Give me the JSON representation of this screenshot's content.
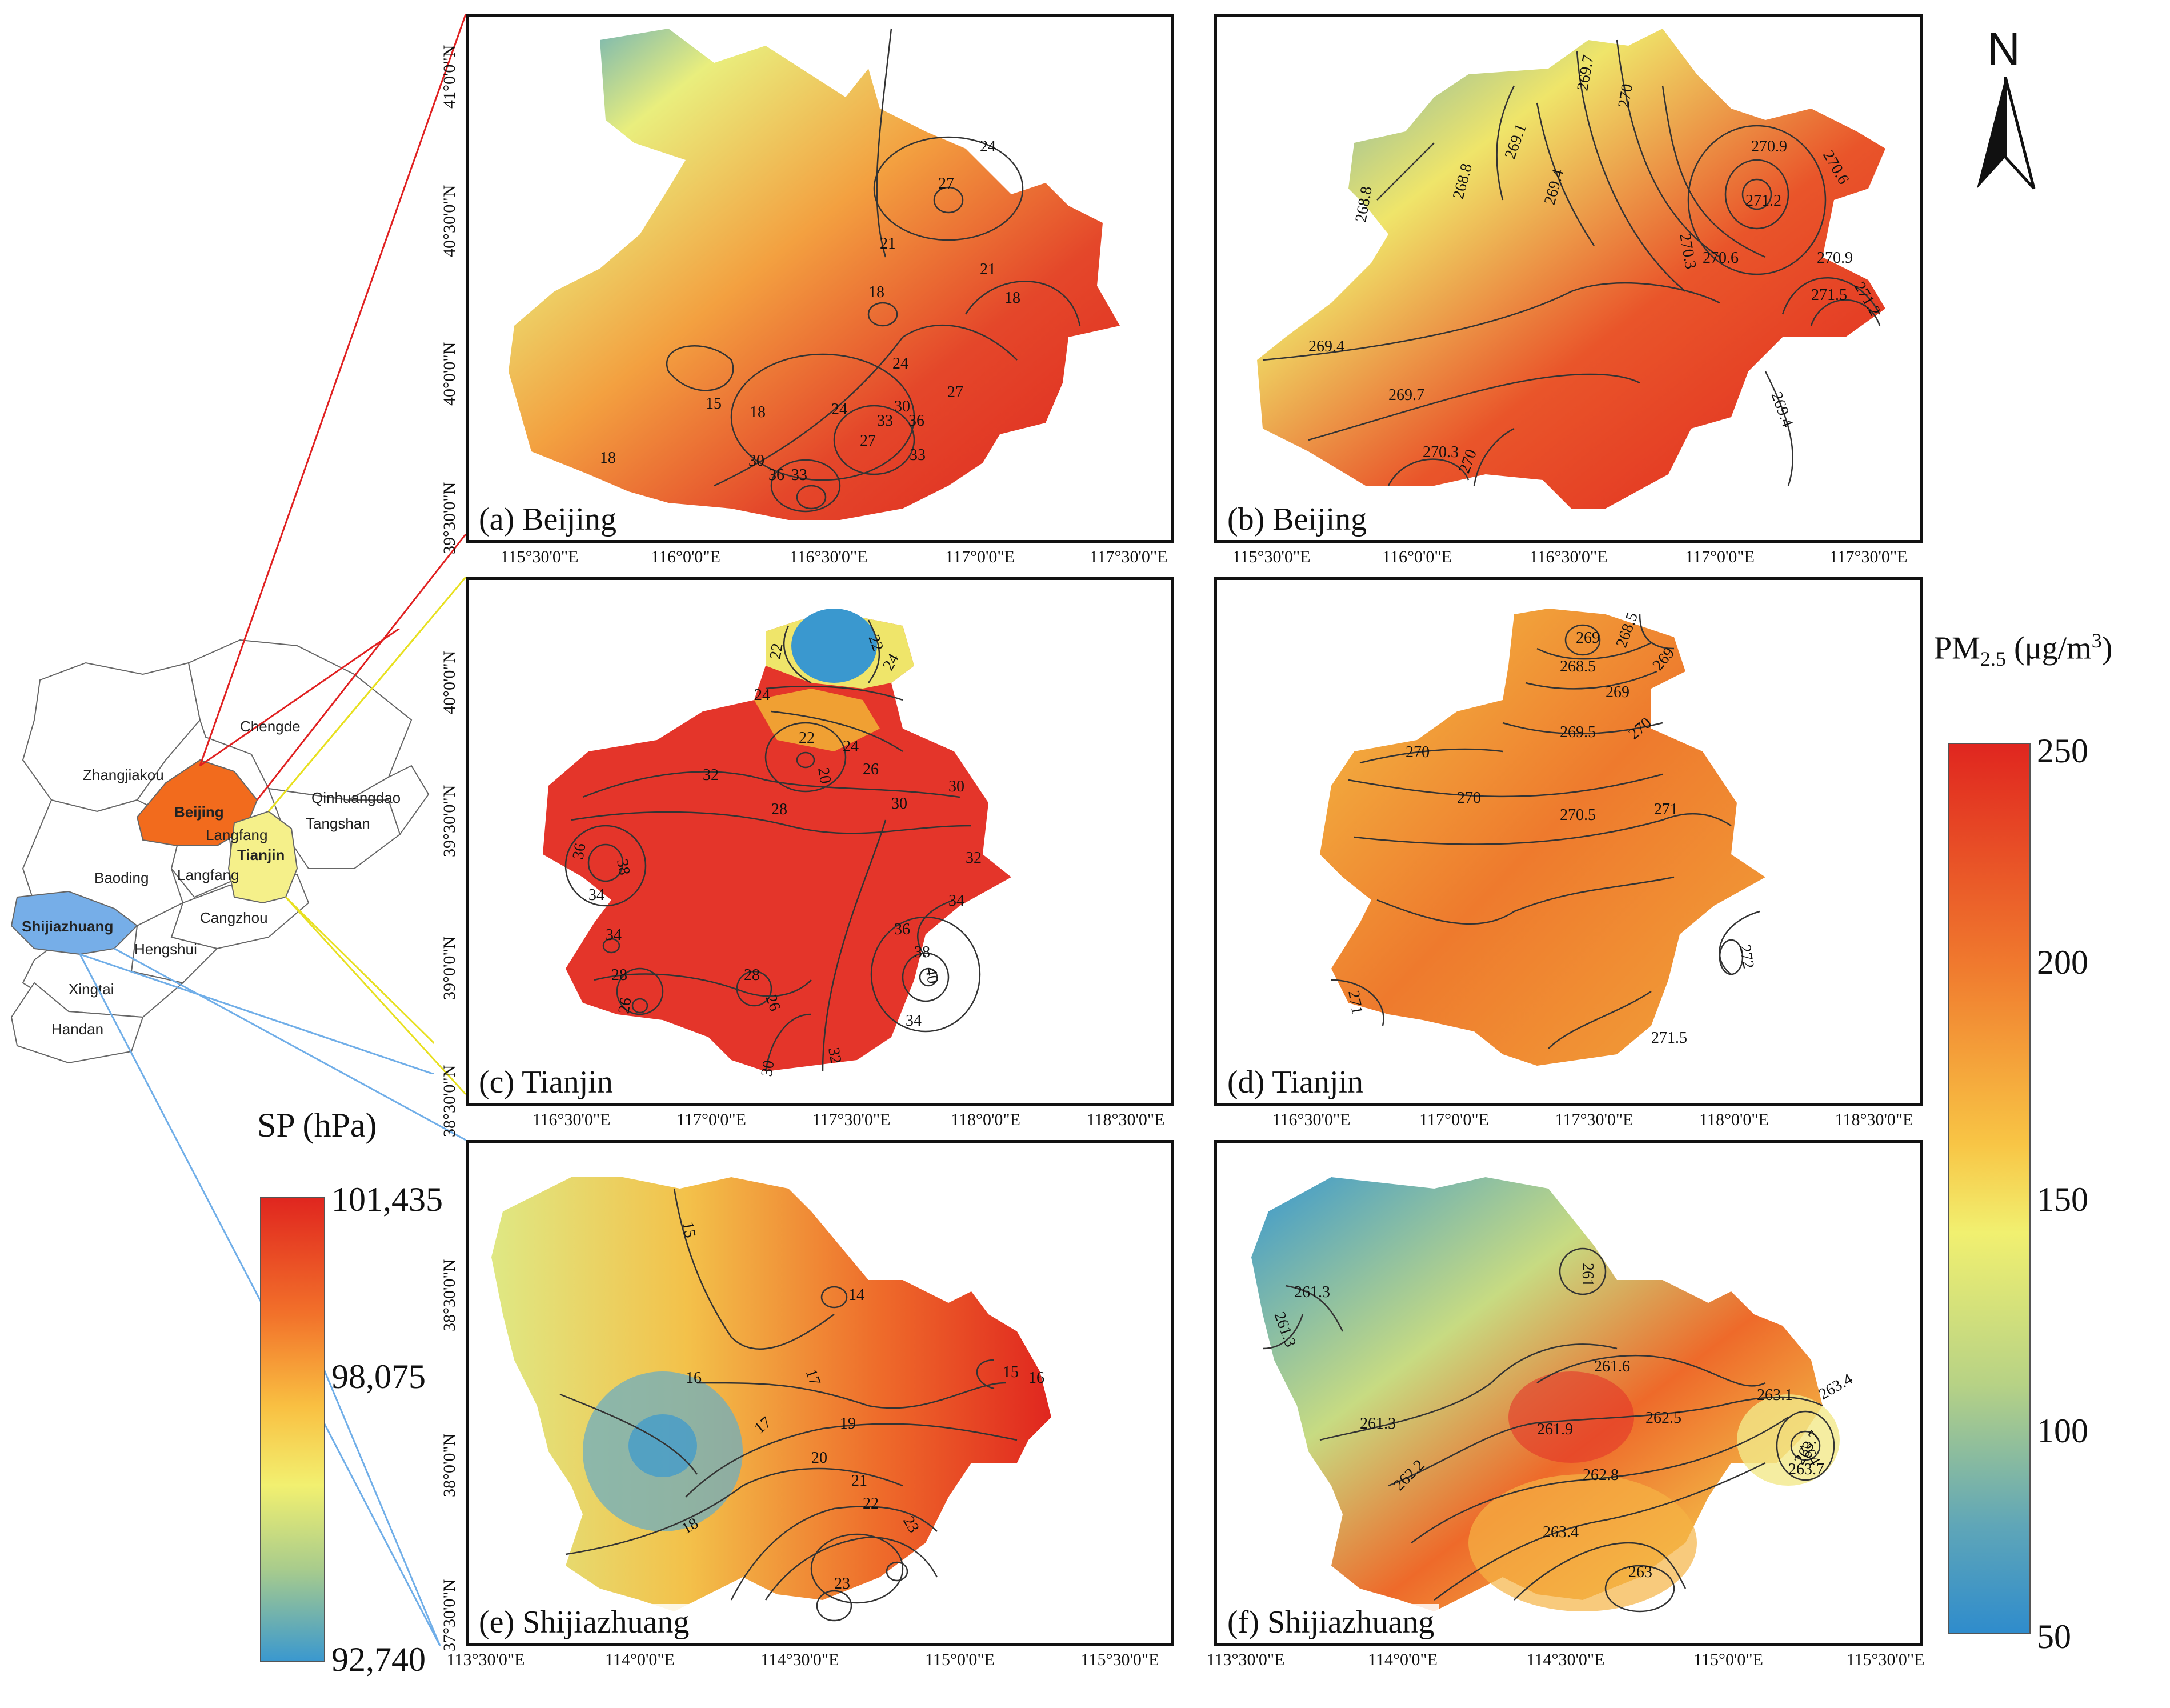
{
  "panels": [
    {
      "id": "a",
      "label": "(a) Beijing",
      "city": "Beijing",
      "variable": "SP",
      "x_ticks": [
        "115°30'0\"E",
        "116°0'0\"E",
        "116°30'0\"E",
        "117°0'0\"E",
        "117°30'0\"E"
      ],
      "y_ticks": [
        "41°0'0\"N",
        "40°30'0\"N",
        "40°0'0\"N",
        "39°30'0\"N"
      ],
      "contour_labels": [
        "27",
        "24",
        "21",
        "21",
        "18",
        "18",
        "15",
        "18",
        "18",
        "24",
        "24",
        "27",
        "30",
        "33",
        "36",
        "33",
        "27",
        "30",
        "36",
        "33"
      ]
    },
    {
      "id": "b",
      "label": "(b) Beijing",
      "city": "Beijing",
      "variable": "PM2.5",
      "x_ticks": [
        "115°30'0\"E",
        "116°0'0\"E",
        "116°30'0\"E",
        "117°0'0\"E",
        "117°30'0\"E"
      ],
      "y_ticks": [],
      "contour_labels": [
        "269.7",
        "270",
        "270.9",
        "270.6",
        "269.1",
        "269.4",
        "268.8",
        "268.8",
        "270.3",
        "271.2",
        "270.6",
        "270.9",
        "271.5",
        "271.2",
        "269.4",
        "269.7",
        "270.3",
        "270",
        "269.4"
      ]
    },
    {
      "id": "c",
      "label": "(c) Tianjin",
      "city": "Tianjin",
      "variable": "SP",
      "x_ticks": [
        "116°30'0\"E",
        "117°0'0\"E",
        "117°30'0\"E",
        "118°0'0\"E",
        "118°30'0\"E"
      ],
      "y_ticks": [
        "40°0'0\"N",
        "39°30'0\"N",
        "39°0'0\"N",
        "38°30'0\"N"
      ],
      "contour_labels": [
        "22",
        "22",
        "24",
        "24",
        "22",
        "20",
        "24",
        "26",
        "32",
        "28",
        "30",
        "30",
        "32",
        "36",
        "38",
        "34",
        "34",
        "36",
        "38",
        "40",
        "34",
        "28",
        "28",
        "26",
        "26",
        "32",
        "34",
        "30"
      ]
    },
    {
      "id": "d",
      "label": "(d) Tianjin",
      "city": "Tianjin",
      "variable": "PM2.5",
      "x_ticks": [
        "116°30'0\"E",
        "117°0'0\"E",
        "117°30'0\"E",
        "118°0'0\"E",
        "118°30'0\"E"
      ],
      "y_ticks": [],
      "contour_labels": [
        "269",
        "268.5",
        "268.5",
        "269",
        "269",
        "270",
        "269.5",
        "270",
        "270",
        "270.5",
        "271",
        "272",
        "271",
        "271.5"
      ]
    },
    {
      "id": "e",
      "label": "(e) Shijiazhuang",
      "city": "Shijiazhuang",
      "variable": "SP",
      "x_ticks": [
        "113°30'0\"E",
        "114°0'0\"E",
        "114°30'0\"E",
        "115°0'0\"E",
        "115°30'0\"E"
      ],
      "y_ticks": [
        "38°30'0\"N",
        "38°0'0\"N",
        "37°30'0\"N"
      ],
      "contour_labels": [
        "15",
        "14",
        "16",
        "17",
        "17",
        "15",
        "16",
        "19",
        "20",
        "21",
        "22",
        "23",
        "23",
        "18"
      ]
    },
    {
      "id": "f",
      "label": "(f) Shijiazhuang",
      "city": "Shijiazhuang",
      "variable": "PM2.5",
      "x_ticks": [
        "113°30'0\"E",
        "114°0'0\"E",
        "114°30'0\"E",
        "115°0'0\"E",
        "115°30'0\"E"
      ],
      "y_ticks": [],
      "contour_labels": [
        "261.3",
        "261.3",
        "261",
        "261.6",
        "261.3",
        "261.9",
        "262.5",
        "263.1",
        "263.4",
        "262.2",
        "262.8",
        "263.4",
        "263.7",
        "264",
        "263.7",
        "263"
      ]
    }
  ],
  "north_arrow": {
    "label": "N"
  },
  "sp_legend": {
    "title": "SP (hPa)",
    "max": "101,435",
    "mid": "98,075",
    "min": "92,740"
  },
  "pm_legend": {
    "title_main": "PM",
    "title_sub": "2.5",
    "title_unit": " (μg/m",
    "title_sup": "3",
    "title_close": ")",
    "ticks": [
      "250",
      "200",
      "150",
      "100",
      "50"
    ]
  },
  "inset_map": {
    "regions": [
      "Zhangjiakou",
      "Chengde",
      "Beijing",
      "Langfang",
      "Tianjin",
      "Tangshan",
      "Qinhuangdao",
      "Baoding",
      "Langfang",
      "Shijiazhuang",
      "Cangzhou",
      "Hengshui",
      "Xingtai",
      "Handan"
    ]
  },
  "colors": {
    "beijing": "#f26b1d",
    "tianjin": "#f5f08a",
    "shijiazhuang": "#76aee8",
    "red_line": "#e02020",
    "yellow_line": "#e8e020",
    "blue_line": "#70aee8"
  }
}
